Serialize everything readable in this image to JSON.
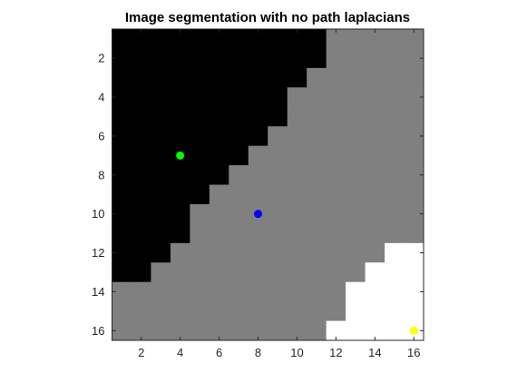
{
  "chart_data": {
    "type": "heatmap",
    "title": "Image segmentation with no path laplacians",
    "xlabel": "",
    "ylabel": "",
    "xlim": [
      0.5,
      16.5
    ],
    "ylim": [
      0.5,
      16.5
    ],
    "y_reversed": true,
    "grid": false,
    "x_ticks": [
      2,
      4,
      6,
      8,
      10,
      12,
      14,
      16
    ],
    "y_ticks": [
      2,
      4,
      6,
      8,
      10,
      12,
      14,
      16
    ],
    "colormap": {
      "0": "#000000",
      "1": "#808080",
      "2": "#ffffff"
    },
    "label_rows": [
      [
        0,
        0,
        0,
        0,
        0,
        0,
        0,
        0,
        0,
        0,
        0,
        1,
        1,
        1,
        1,
        1
      ],
      [
        0,
        0,
        0,
        0,
        0,
        0,
        0,
        0,
        0,
        0,
        0,
        1,
        1,
        1,
        1,
        1
      ],
      [
        0,
        0,
        0,
        0,
        0,
        0,
        0,
        0,
        0,
        0,
        1,
        1,
        1,
        1,
        1,
        1
      ],
      [
        0,
        0,
        0,
        0,
        0,
        0,
        0,
        0,
        0,
        1,
        1,
        1,
        1,
        1,
        1,
        1
      ],
      [
        0,
        0,
        0,
        0,
        0,
        0,
        0,
        0,
        0,
        1,
        1,
        1,
        1,
        1,
        1,
        1
      ],
      [
        0,
        0,
        0,
        0,
        0,
        0,
        0,
        0,
        1,
        1,
        1,
        1,
        1,
        1,
        1,
        1
      ],
      [
        0,
        0,
        0,
        0,
        0,
        0,
        0,
        1,
        1,
        1,
        1,
        1,
        1,
        1,
        1,
        1
      ],
      [
        0,
        0,
        0,
        0,
        0,
        0,
        1,
        1,
        1,
        1,
        1,
        1,
        1,
        1,
        1,
        1
      ],
      [
        0,
        0,
        0,
        0,
        0,
        1,
        1,
        1,
        1,
        1,
        1,
        1,
        1,
        1,
        1,
        1
      ],
      [
        0,
        0,
        0,
        0,
        1,
        1,
        1,
        1,
        1,
        1,
        1,
        1,
        1,
        1,
        1,
        1
      ],
      [
        0,
        0,
        0,
        0,
        1,
        1,
        1,
        1,
        1,
        1,
        1,
        1,
        1,
        1,
        1,
        1
      ],
      [
        0,
        0,
        0,
        1,
        1,
        1,
        1,
        1,
        1,
        1,
        1,
        1,
        1,
        1,
        2,
        2
      ],
      [
        0,
        0,
        1,
        1,
        1,
        1,
        1,
        1,
        1,
        1,
        1,
        1,
        1,
        2,
        2,
        2
      ],
      [
        1,
        1,
        1,
        1,
        1,
        1,
        1,
        1,
        1,
        1,
        1,
        1,
        2,
        2,
        2,
        2
      ],
      [
        1,
        1,
        1,
        1,
        1,
        1,
        1,
        1,
        1,
        1,
        1,
        1,
        2,
        2,
        2,
        2
      ],
      [
        1,
        1,
        1,
        1,
        1,
        1,
        1,
        1,
        1,
        1,
        1,
        2,
        2,
        2,
        2,
        2
      ]
    ],
    "seed_points": [
      {
        "x": 4,
        "y": 7,
        "color": "#00ff00"
      },
      {
        "x": 8,
        "y": 10,
        "color": "#0000ff"
      },
      {
        "x": 16,
        "y": 16,
        "color": "#ffff00"
      }
    ]
  }
}
